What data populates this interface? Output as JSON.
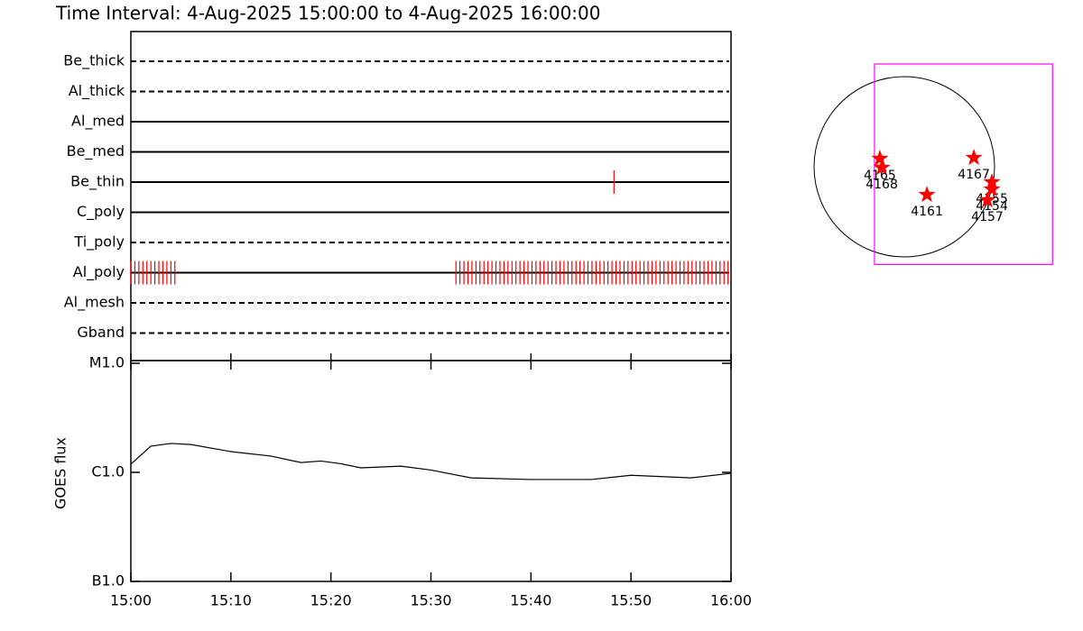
{
  "title": "Time Interval:  4-Aug-2025 15:00:00 to  4-Aug-2025 16:00:00",
  "chart_data": [
    {
      "type": "timeline",
      "color": "#ff0000",
      "rows": [
        {
          "name": "Be_thick",
          "style": "dashed",
          "times": []
        },
        {
          "name": "Al_thick",
          "style": "dashed",
          "times": []
        },
        {
          "name": "Al_med",
          "style": "solid",
          "times": []
        },
        {
          "name": "Be_med",
          "style": "solid",
          "times": []
        },
        {
          "name": "Be_thin",
          "style": "solid",
          "times": [
            48.3
          ]
        },
        {
          "name": "C_poly",
          "style": "solid",
          "times": []
        },
        {
          "name": "Ti_poly",
          "style": "dashed",
          "times": []
        },
        {
          "name": "Al_poly",
          "style": "solid",
          "times": [
            0,
            0.4,
            0.8,
            1.2,
            1.6,
            2.0,
            2.4,
            2.8,
            3.2,
            3.6,
            4.0,
            4.4,
            32.5,
            32.9,
            33.3,
            33.7,
            34.1,
            34.5,
            34.9,
            35.3,
            35.7,
            36.1,
            36.5,
            36.9,
            37.3,
            37.7,
            38.1,
            38.5,
            38.9,
            39.3,
            39.7,
            40.1,
            40.5,
            40.9,
            41.3,
            41.7,
            42.1,
            42.5,
            42.9,
            43.3,
            43.7,
            44.1,
            44.5,
            44.9,
            45.3,
            45.7,
            46.1,
            46.5,
            46.9,
            47.3,
            47.7,
            48.1,
            48.5,
            48.9,
            49.3,
            49.7,
            50.1,
            50.5,
            50.9,
            51.3,
            51.7,
            52.1,
            52.5,
            52.9,
            53.3,
            53.7,
            54.1,
            54.5,
            54.9,
            55.3,
            55.7,
            56.1,
            56.5,
            56.9,
            57.3,
            57.7,
            58.1,
            58.5,
            58.9,
            59.3,
            59.7
          ]
        },
        {
          "name": "Al_mesh",
          "style": "dashed",
          "times": []
        },
        {
          "name": "Gband",
          "style": "dashed",
          "times": []
        }
      ],
      "xlim": [
        0,
        60
      ]
    },
    {
      "type": "line",
      "ylabel": "GOES flux",
      "log_scale": true,
      "color": "#000000",
      "x": [
        0,
        2,
        4,
        6,
        10,
        14,
        17,
        19,
        21,
        23,
        27,
        30,
        34,
        40,
        46,
        50,
        56,
        60
      ],
      "values": [
        1.19e-06,
        1.74e-06,
        1.84e-06,
        1.8e-06,
        1.55e-06,
        1.41e-06,
        1.23e-06,
        1.27e-06,
        1.2e-06,
        1.1e-06,
        1.14e-06,
        1.05e-06,
        8.9e-07,
        8.6e-07,
        8.6e-07,
        9.4e-07,
        8.9e-07,
        9.8e-07
      ],
      "xlim": [
        0,
        60
      ],
      "xticks": [
        {
          "value": 0,
          "label": "15:00"
        },
        {
          "value": 10,
          "label": "15:10"
        },
        {
          "value": 20,
          "label": "15:20"
        },
        {
          "value": 30,
          "label": "15:30"
        },
        {
          "value": 40,
          "label": "15:40"
        },
        {
          "value": 50,
          "label": "15:50"
        },
        {
          "value": 60,
          "label": "16:00"
        }
      ],
      "ylim": [
        1e-07,
        1e-05
      ],
      "yticks": [
        {
          "value": 1e-07,
          "label": "B1.0"
        },
        {
          "value": 1e-06,
          "label": "C1.0"
        },
        {
          "value": 1e-05,
          "label": "M1.0"
        }
      ]
    },
    {
      "type": "scatter",
      "color": "#ff0000",
      "disk_radius": 950,
      "fov_color": "#ff00ff",
      "fov": {
        "xlim": [
          -314,
          1560
        ],
        "ylim": [
          -1030,
          1083
        ]
      },
      "labels": [
        "4165",
        "4168",
        "4167",
        "4161",
        "4155",
        "4154",
        "4157"
      ],
      "x": [
        -257,
        -237,
        732,
        238,
        922,
        922,
        874
      ],
      "y": [
        86,
        -10,
        95,
        -295,
        -162,
        -238,
        -352
      ]
    }
  ]
}
